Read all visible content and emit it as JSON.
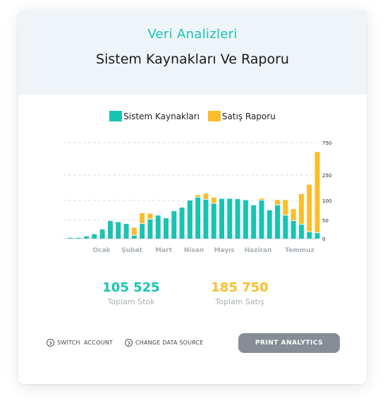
{
  "header": {
    "subtitle": "Veri Analizleri",
    "title": "Sistem Kaynakları Ve Raporu"
  },
  "colors": {
    "teal": "#19c3b3",
    "orange": "#fbbd2b",
    "gridline": "#d9dde0",
    "month_label": "#a8b0b6",
    "button_bg": "#878d96"
  },
  "chart_data": {
    "type": "bar",
    "stacked": true,
    "legend_position": "top-center",
    "grid": true,
    "series": [
      {
        "name": "Sistem Kaynakları",
        "color": "#19c3b3",
        "values": [
          2,
          2,
          6,
          12,
          25,
          48,
          45,
          40,
          8,
          40,
          52,
          62,
          55,
          73,
          82,
          100,
          118,
          105,
          92,
          110,
          110,
          108,
          102,
          88,
          100,
          75,
          88,
          62,
          48,
          38,
          18,
          15
        ]
      },
      {
        "name": "Satış Raporu",
        "color": "#fbbd2b",
        "values": [
          0,
          0,
          0,
          0,
          0,
          0,
          0,
          0,
          22,
          28,
          15,
          0,
          0,
          0,
          0,
          0,
          15,
          35,
          25,
          0,
          0,
          0,
          0,
          0,
          12,
          0,
          15,
          40,
          30,
          100,
          175,
          590
        ]
      }
    ],
    "x_tick_labels": [
      "Ocak",
      "Şubat",
      "Mart",
      "Nisan",
      "Mayıs",
      "Haziran",
      "Temmuz"
    ],
    "y_tick_labels": [
      "750",
      "250",
      "100",
      "50",
      "0"
    ],
    "ylim": [
      0,
      750
    ]
  },
  "stats": [
    {
      "value": "105 525",
      "label": "Toplam Stok"
    },
    {
      "value": "185 750",
      "label": "Toplam Satış"
    }
  ],
  "actions": {
    "switch_account": "SWITCH  ACCOUNT",
    "change_data_source": "CHANGE DATA SOURCE",
    "print": "PRINT ANALYTICS"
  },
  "icons": {
    "action": "chevron-circle-icon"
  }
}
